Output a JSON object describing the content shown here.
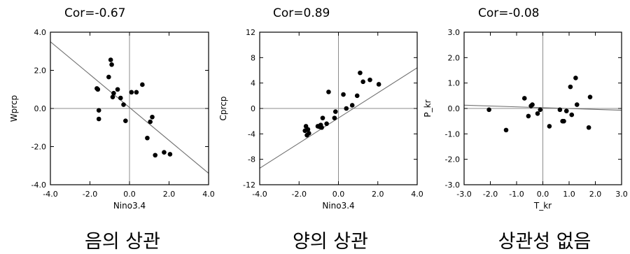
{
  "chart_data": [
    {
      "type": "scatter",
      "title": "Cor=-0.67",
      "xlabel": "Nino3.4",
      "ylabel": "Wprcp",
      "caption": "음의 상관",
      "xlim": [
        -4.0,
        4.0
      ],
      "ylim": [
        -4.0,
        4.0
      ],
      "xticks": [
        -4,
        -2,
        0,
        2,
        4
      ],
      "yticks": [
        -4,
        -2,
        0,
        2,
        4
      ],
      "xtick_labels": [
        "-4.0",
        "-2.0",
        "0.0",
        "2.0",
        "4.0"
      ],
      "ytick_labels": [
        "-4.0",
        "-2.0",
        "0.0",
        "2.0",
        "4.0"
      ],
      "zero_lines": true,
      "fit_line": {
        "x": [
          -4.0,
          4.0
        ],
        "y": [
          3.5,
          -3.4
        ]
      },
      "points": {
        "x": [
          -1.65,
          -1.6,
          -1.55,
          -1.55,
          -1.05,
          -0.95,
          -0.9,
          -0.85,
          -0.8,
          -0.6,
          -0.45,
          -0.3,
          -0.2,
          0.1,
          0.35,
          0.65,
          0.9,
          1.05,
          1.15,
          1.3,
          1.75,
          2.05
        ],
        "y": [
          1.05,
          1.0,
          -0.1,
          -0.55,
          1.65,
          2.55,
          2.3,
          0.6,
          0.8,
          1.0,
          0.55,
          0.2,
          -0.65,
          0.85,
          0.85,
          1.25,
          -1.55,
          -0.7,
          -0.45,
          -2.45,
          -2.3,
          -2.4
        ]
      }
    },
    {
      "type": "scatter",
      "title": "Cor=0.89",
      "xlabel": "Nino3.4",
      "ylabel": "Cprcp",
      "caption": "양의 상관",
      "xlim": [
        -4.0,
        4.0
      ],
      "ylim": [
        -12,
        12
      ],
      "xticks": [
        -4,
        -2,
        0,
        2,
        4
      ],
      "yticks": [
        -12,
        -8,
        -4,
        0,
        4,
        8,
        12
      ],
      "xtick_labels": [
        "-4.0",
        "-2.0",
        "0.0",
        "2.0",
        "4.0"
      ],
      "ytick_labels": [
        "-12",
        "-8",
        "-4",
        "0",
        "4",
        "8",
        "12"
      ],
      "zero_lines": true,
      "fit_line": {
        "x": [
          -4.0,
          4.0
        ],
        "y": [
          -9.4,
          6.4
        ]
      },
      "points": {
        "x": [
          -1.7,
          -1.65,
          -1.6,
          -1.55,
          -1.5,
          -1.05,
          -0.95,
          -0.9,
          -0.85,
          -0.8,
          -0.6,
          -0.5,
          -0.2,
          -0.15,
          0.25,
          0.4,
          0.7,
          0.95,
          1.1,
          1.25,
          1.6,
          2.05
        ],
        "y": [
          -3.5,
          -2.8,
          -4.2,
          -3.3,
          -3.9,
          -2.8,
          -2.9,
          -2.6,
          -3.0,
          -1.5,
          -2.4,
          2.6,
          -1.5,
          -0.5,
          2.2,
          0.0,
          0.5,
          2.0,
          5.6,
          4.2,
          4.5,
          3.8
        ]
      }
    },
    {
      "type": "scatter",
      "title": "Cor=-0.08",
      "xlabel": "T_kr",
      "ylabel": "P_kr",
      "caption": "상관성 없음",
      "xlim": [
        -3.0,
        3.0
      ],
      "ylim": [
        -3.0,
        3.0
      ],
      "xticks": [
        -3,
        -2,
        -1,
        0,
        1,
        2,
        3
      ],
      "yticks": [
        -3,
        -2,
        -1,
        0,
        1,
        2,
        3
      ],
      "xtick_labels": [
        "-3.0",
        "-2.0",
        "-1.0",
        "0.0",
        "1.0",
        "2.0",
        "3.0"
      ],
      "ytick_labels": [
        "-3.0",
        "-2.0",
        "-1.0",
        "0.0",
        "1.0",
        "2.0",
        "3.0"
      ],
      "zero_lines": true,
      "fit_line": {
        "x": [
          -3.0,
          3.0
        ],
        "y": [
          0.13,
          -0.07
        ]
      },
      "points": {
        "x": [
          -2.05,
          -1.4,
          -0.7,
          -0.55,
          -0.45,
          -0.4,
          -0.2,
          -0.1,
          0.25,
          0.65,
          0.75,
          0.8,
          0.9,
          1.05,
          1.1,
          1.25,
          1.3,
          1.75,
          1.8
        ],
        "y": [
          -0.05,
          -0.85,
          0.4,
          -0.3,
          0.1,
          0.15,
          -0.2,
          -0.05,
          -0.7,
          -0.05,
          -0.5,
          -0.5,
          -0.1,
          0.85,
          -0.25,
          1.2,
          0.15,
          -0.75,
          0.45
        ]
      }
    }
  ]
}
